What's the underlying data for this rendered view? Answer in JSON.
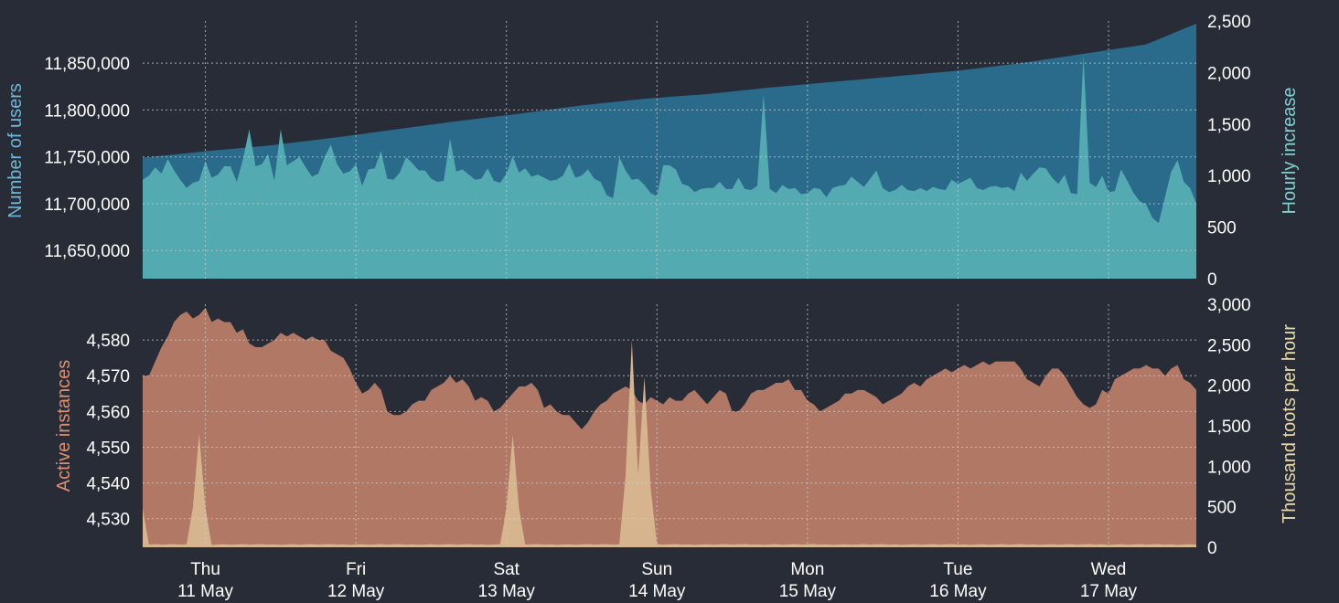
{
  "colors": {
    "background": "#282c37",
    "users_area": "#2a6a8b",
    "hourly_area": "#53aab0",
    "instances_area": "#b07865",
    "toots_area": "#d6b48e",
    "users_label": "#6fb7d8",
    "hourly_label": "#7fd1d1",
    "instances_label": "#df8e70",
    "toots_label": "#e8d9a6",
    "grid": "#cfcfcf"
  },
  "chart_data": [
    {
      "type": "area",
      "grid": true,
      "ylabel": "Number of users",
      "ylabel_right": "Hourly increase",
      "ylim": [
        11620000,
        11895000
      ],
      "y2lim": [
        0,
        2500
      ],
      "yticks": [
        "11,650,000",
        "11,700,000",
        "11,750,000",
        "11,800,000",
        "11,850,000"
      ],
      "y2ticks": [
        "0",
        "500",
        "1,000",
        "1,500",
        "2,000",
        "2,500"
      ],
      "x_count": 169,
      "series": [
        {
          "axis": "left",
          "start": 11749000,
          "end": 11895000,
          "max_bumps": [
            [
              0,
              11749000
            ],
            [
              10,
              11756000
            ],
            [
              20,
              11762000
            ],
            [
              30,
              11770000
            ],
            [
              40,
              11779000
            ],
            [
              50,
              11788000
            ],
            [
              60,
              11796000
            ],
            [
              70,
              11805000
            ],
            [
              80,
              11812000
            ],
            [
              90,
              11817000
            ],
            [
              100,
              11824000
            ],
            [
              110,
              11830000
            ],
            [
              120,
              11836000
            ],
            [
              130,
              11842000
            ],
            [
              140,
              11850000
            ],
            [
              150,
              11860000
            ],
            [
              160,
              11870000
            ],
            [
              169,
              11895000
            ]
          ]
        },
        {
          "axis": "right",
          "values": [
            960,
            1000,
            1080,
            1020,
            1160,
            1050,
            960,
            880,
            930,
            950,
            1140,
            980,
            1010,
            1090,
            1090,
            940,
            1160,
            1450,
            1090,
            1110,
            1210,
            950,
            1050,
            1100,
            1140,
            1180,
            1080,
            990,
            1020,
            1180,
            1300,
            1110,
            1020,
            1040,
            1110,
            900,
            1060,
            1070,
            1240,
            970,
            960,
            1030,
            1180,
            1120,
            1050,
            1050,
            970,
            940,
            950,
            1360,
            1040,
            1060,
            1010,
            960,
            970,
            1070,
            950,
            930,
            1020,
            1190,
            1030,
            1070,
            990,
            1010,
            980,
            950,
            960,
            1000,
            1120,
            980,
            1000,
            1060,
            970,
            940,
            810,
            780,
            1180,
            1050,
            960,
            970,
            910,
            830,
            800,
            1100,
            1100,
            1060,
            920,
            900,
            840,
            870,
            880,
            880,
            940,
            870,
            870,
            980,
            870,
            860,
            900,
            860,
            870,
            830,
            910,
            870,
            880,
            820,
            830,
            880,
            870,
            790,
            880,
            900,
            910,
            990,
            940,
            890,
            970,
            1050,
            880,
            840,
            860,
            910,
            860,
            850,
            880,
            850,
            890,
            870,
            860,
            960,
            920,
            950,
            980,
            880,
            860,
            890,
            900,
            880,
            890,
            850,
            1030,
            950,
            1020,
            1080,
            1070,
            980,
            920,
            1010,
            830,
            820,
            1040,
            930,
            890,
            1000,
            840,
            850,
            1060,
            950,
            830,
            750,
            720,
            590,
            540,
            790,
            1040,
            1150,
            940,
            880,
            730,
            730,
            690,
            650,
            620
          ],
          "peaks": [
            [
              22,
              1450
            ],
            [
              99,
              1790
            ],
            [
              150,
              2170
            ]
          ]
        }
      ]
    },
    {
      "type": "area",
      "grid": true,
      "ylabel": "Active instances",
      "ylabel_right": "Thousand toots per hour",
      "ylim": [
        4522,
        4590
      ],
      "y2lim": [
        0,
        3000
      ],
      "yticks": [
        "4,530",
        "4,540",
        "4,550",
        "4,560",
        "4,570",
        "4,580"
      ],
      "y2ticks": [
        "0",
        "500",
        "1,000",
        "1,500",
        "2,000",
        "2,500",
        "3,000"
      ],
      "x_count": 169,
      "series": [
        {
          "axis": "left",
          "values": [
            4570,
            4570,
            4574,
            4578,
            4581,
            4585,
            4587,
            4588,
            4586,
            4587,
            4589,
            4585,
            4586,
            4585,
            4585,
            4582,
            4583,
            4579,
            4578,
            4578,
            4579,
            4580,
            4582,
            4581,
            4582,
            4581,
            4580,
            4581,
            4580,
            4580,
            4577,
            4576,
            4575,
            4572,
            4568,
            4565,
            4566,
            4568,
            4566,
            4560,
            4559,
            4559,
            4560,
            4562,
            4563,
            4563,
            4566,
            4567,
            4568,
            4570,
            4568,
            4569,
            4567,
            4563,
            4564,
            4563,
            4560,
            4561,
            4563,
            4565,
            4567,
            4567,
            4568,
            4566,
            4561,
            4562,
            4560,
            4559,
            4559,
            4557,
            4555,
            4557,
            4560,
            4562,
            4563,
            4565,
            4566,
            4567,
            4566,
            4563,
            4562,
            4564,
            4563,
            4562,
            4564,
            4563,
            4563,
            4565,
            4566,
            4564,
            4562,
            4564,
            4566,
            4565,
            4560,
            4560,
            4562,
            4565,
            4566,
            4566,
            4567,
            4568,
            4568,
            4569,
            4566,
            4566,
            4563,
            4562,
            4560,
            4561,
            4562,
            4563,
            4565,
            4565,
            4566,
            4566,
            4565,
            4564,
            4562,
            4563,
            4564,
            4565,
            4567,
            4568,
            4567,
            4569,
            4570,
            4571,
            4572,
            4571,
            4572,
            4573,
            4572,
            4573,
            4574,
            4573,
            4574,
            4574,
            4574,
            4574,
            4572,
            4569,
            4568,
            4567,
            4570,
            4572,
            4572,
            4570,
            4567,
            4564,
            4562,
            4561,
            4562,
            4566,
            4565,
            4569,
            4570,
            4571,
            4572,
            4572,
            4573,
            4572,
            4572,
            4570,
            4572,
            4573,
            4569,
            4568,
            4566,
            4564
          ],
          "dips": [
            [
              26,
              4573
            ],
            [
              62,
              4561
            ],
            [
              84,
              4559
            ],
            [
              102,
              4563
            ],
            [
              125,
              4570
            ]
          ]
        },
        {
          "axis": "right",
          "baseline": 30,
          "spikes": [
            [
              0,
              480
            ],
            [
              9,
              1400
            ],
            [
              59,
              1390
            ],
            [
              78,
              2550
            ],
            [
              80,
              2100
            ]
          ]
        }
      ]
    }
  ],
  "x_axis": {
    "ticks": [
      {
        "day": "Thu",
        "date": "11 May"
      },
      {
        "day": "Fri",
        "date": "12 May"
      },
      {
        "day": "Sat",
        "date": "13 May"
      },
      {
        "day": "Sun",
        "date": "14 May"
      },
      {
        "day": "Mon",
        "date": "15 May"
      },
      {
        "day": "Tue",
        "date": "16 May"
      },
      {
        "day": "Wed",
        "date": "17 May"
      }
    ],
    "first_tick_index": 10
  }
}
